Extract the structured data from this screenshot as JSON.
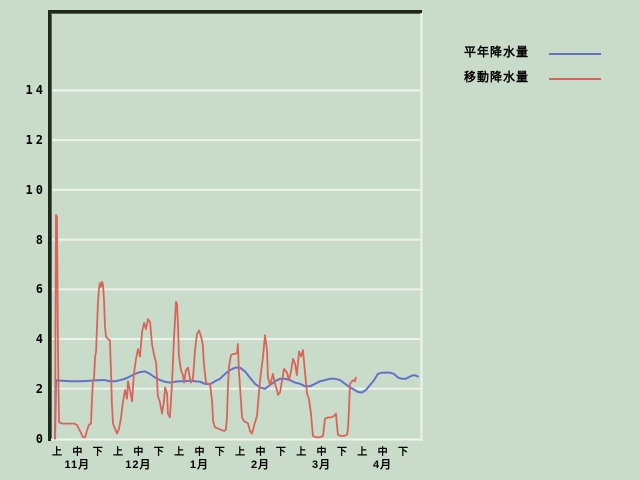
{
  "legend": {
    "items": [
      {
        "label": "平年降水量",
        "color": "#6471cb"
      },
      {
        "label": "移動降水量",
        "color": "#d8655a"
      }
    ]
  },
  "chart_data": {
    "type": "line",
    "title": "",
    "xlabel": "",
    "ylabel": "",
    "grid": true,
    "legend_position": "top-right",
    "y_axis": {
      "tick_values": [
        0,
        2,
        4,
        6,
        8,
        10,
        12,
        14
      ],
      "tick_labels": [
        "0",
        "2",
        "4",
        "6",
        "8",
        "10",
        "12",
        "14"
      ],
      "gridlines": [
        2,
        4,
        6,
        8,
        10,
        12,
        14
      ],
      "range": [
        0,
        17.1
      ]
    },
    "x_axis": {
      "months": [
        "11月",
        "12月",
        "1月",
        "2月",
        "3月",
        "4月"
      ],
      "period_labels": [
        "上",
        "中",
        "下"
      ],
      "unit_description": "x in ten-day periods, 0 = 11月上"
    },
    "series": [
      {
        "name": "平年降水量",
        "color": "#6471cb",
        "points": [
          [
            -0.1,
            0.0
          ],
          [
            -0.05,
            2.35
          ],
          [
            0.15,
            2.33
          ],
          [
            0.64,
            2.3
          ],
          [
            1.13,
            2.3
          ],
          [
            1.62,
            2.32
          ],
          [
            2.11,
            2.35
          ],
          [
            2.36,
            2.35
          ],
          [
            2.6,
            2.3
          ],
          [
            2.85,
            2.3
          ],
          [
            3.1,
            2.35
          ],
          [
            3.34,
            2.4
          ],
          [
            3.59,
            2.5
          ],
          [
            3.83,
            2.6
          ],
          [
            4.08,
            2.67
          ],
          [
            4.32,
            2.7
          ],
          [
            4.57,
            2.6
          ],
          [
            4.82,
            2.45
          ],
          [
            5.06,
            2.35
          ],
          [
            5.31,
            2.28
          ],
          [
            5.55,
            2.25
          ],
          [
            5.8,
            2.28
          ],
          [
            6.04,
            2.3
          ],
          [
            6.29,
            2.3
          ],
          [
            6.54,
            2.32
          ],
          [
            6.78,
            2.3
          ],
          [
            7.03,
            2.28
          ],
          [
            7.27,
            2.2
          ],
          [
            7.52,
            2.18
          ],
          [
            7.76,
            2.3
          ],
          [
            8.01,
            2.4
          ],
          [
            8.26,
            2.6
          ],
          [
            8.5,
            2.75
          ],
          [
            8.75,
            2.85
          ],
          [
            8.99,
            2.85
          ],
          [
            9.24,
            2.7
          ],
          [
            9.48,
            2.45
          ],
          [
            9.73,
            2.2
          ],
          [
            9.98,
            2.05
          ],
          [
            10.22,
            2.0
          ],
          [
            10.47,
            2.15
          ],
          [
            10.71,
            2.3
          ],
          [
            10.96,
            2.4
          ],
          [
            11.21,
            2.4
          ],
          [
            11.45,
            2.35
          ],
          [
            11.7,
            2.25
          ],
          [
            11.94,
            2.2
          ],
          [
            12.19,
            2.1
          ],
          [
            12.43,
            2.1
          ],
          [
            12.68,
            2.2
          ],
          [
            12.92,
            2.3
          ],
          [
            13.17,
            2.35
          ],
          [
            13.41,
            2.4
          ],
          [
            13.66,
            2.4
          ],
          [
            13.91,
            2.35
          ],
          [
            14.15,
            2.2
          ],
          [
            14.4,
            2.05
          ],
          [
            14.64,
            1.95
          ],
          [
            14.79,
            1.87
          ],
          [
            14.99,
            1.85
          ],
          [
            15.18,
            1.95
          ],
          [
            15.38,
            2.15
          ],
          [
            15.58,
            2.35
          ],
          [
            15.77,
            2.6
          ],
          [
            15.97,
            2.65
          ],
          [
            16.17,
            2.65
          ],
          [
            16.36,
            2.65
          ],
          [
            16.56,
            2.6
          ],
          [
            16.76,
            2.45
          ],
          [
            16.95,
            2.4
          ],
          [
            17.15,
            2.4
          ],
          [
            17.35,
            2.5
          ],
          [
            17.54,
            2.55
          ],
          [
            17.74,
            2.5
          ]
        ]
      },
      {
        "name": "移動降水量",
        "color": "#d8655a",
        "points": [
          [
            -0.1,
            0.0
          ],
          [
            -0.05,
            9.0
          ],
          [
            0.0,
            8.9
          ],
          [
            0.05,
            3.5
          ],
          [
            0.1,
            0.65
          ],
          [
            0.25,
            0.6
          ],
          [
            0.44,
            0.6
          ],
          [
            0.64,
            0.6
          ],
          [
            0.84,
            0.6
          ],
          [
            0.98,
            0.55
          ],
          [
            1.13,
            0.3
          ],
          [
            1.28,
            0.05
          ],
          [
            1.38,
            0.05
          ],
          [
            1.47,
            0.3
          ],
          [
            1.57,
            0.55
          ],
          [
            1.67,
            0.6
          ],
          [
            1.72,
            1.6
          ],
          [
            1.77,
            2.35
          ],
          [
            1.82,
            2.4
          ],
          [
            1.87,
            3.3
          ],
          [
            1.92,
            3.5
          ],
          [
            1.97,
            4.6
          ],
          [
            2.01,
            5.4
          ],
          [
            2.06,
            6.0
          ],
          [
            2.11,
            6.25
          ],
          [
            2.16,
            6.1
          ],
          [
            2.21,
            6.3
          ],
          [
            2.26,
            6.2
          ],
          [
            2.31,
            5.6
          ],
          [
            2.36,
            4.5
          ],
          [
            2.41,
            4.1
          ],
          [
            2.51,
            4.0
          ],
          [
            2.6,
            3.95
          ],
          [
            2.65,
            2.8
          ],
          [
            2.7,
            1.4
          ],
          [
            2.75,
            0.6
          ],
          [
            2.85,
            0.4
          ],
          [
            2.95,
            0.2
          ],
          [
            3.05,
            0.4
          ],
          [
            3.14,
            0.8
          ],
          [
            3.24,
            1.45
          ],
          [
            3.34,
            1.95
          ],
          [
            3.44,
            1.6
          ],
          [
            3.49,
            2.3
          ],
          [
            3.59,
            1.9
          ],
          [
            3.69,
            1.5
          ],
          [
            3.78,
            2.6
          ],
          [
            3.88,
            3.2
          ],
          [
            3.98,
            3.6
          ],
          [
            4.08,
            3.3
          ],
          [
            4.18,
            4.3
          ],
          [
            4.28,
            4.65
          ],
          [
            4.37,
            4.4
          ],
          [
            4.47,
            4.8
          ],
          [
            4.57,
            4.7
          ],
          [
            4.67,
            3.8
          ],
          [
            4.77,
            3.35
          ],
          [
            4.87,
            3.05
          ],
          [
            4.96,
            1.7
          ],
          [
            5.06,
            1.45
          ],
          [
            5.16,
            1.0
          ],
          [
            5.26,
            1.5
          ],
          [
            5.31,
            2.05
          ],
          [
            5.41,
            1.8
          ],
          [
            5.45,
            1.0
          ],
          [
            5.55,
            0.85
          ],
          [
            5.65,
            2.2
          ],
          [
            5.75,
            4.05
          ],
          [
            5.85,
            5.5
          ],
          [
            5.9,
            5.4
          ],
          [
            5.95,
            4.4
          ],
          [
            5.99,
            3.35
          ],
          [
            6.09,
            2.75
          ],
          [
            6.19,
            2.55
          ],
          [
            6.24,
            2.25
          ],
          [
            6.34,
            2.75
          ],
          [
            6.44,
            2.85
          ],
          [
            6.49,
            2.6
          ],
          [
            6.58,
            2.25
          ],
          [
            6.68,
            2.4
          ],
          [
            6.73,
            2.95
          ],
          [
            6.78,
            3.55
          ],
          [
            6.88,
            4.2
          ],
          [
            6.98,
            4.35
          ],
          [
            7.08,
            4.1
          ],
          [
            7.17,
            3.75
          ],
          [
            7.22,
            3.0
          ],
          [
            7.32,
            2.25
          ],
          [
            7.42,
            2.2
          ],
          [
            7.52,
            2.2
          ],
          [
            7.62,
            1.5
          ],
          [
            7.67,
            0.7
          ],
          [
            7.76,
            0.45
          ],
          [
            7.91,
            0.4
          ],
          [
            8.06,
            0.35
          ],
          [
            8.21,
            0.3
          ],
          [
            8.3,
            0.35
          ],
          [
            8.35,
            0.8
          ],
          [
            8.4,
            2.0
          ],
          [
            8.45,
            2.9
          ],
          [
            8.55,
            3.35
          ],
          [
            8.65,
            3.4
          ],
          [
            8.75,
            3.4
          ],
          [
            8.85,
            3.45
          ],
          [
            8.89,
            3.8
          ],
          [
            8.94,
            2.7
          ],
          [
            9.04,
            1.5
          ],
          [
            9.09,
            0.85
          ],
          [
            9.19,
            0.7
          ],
          [
            9.29,
            0.65
          ],
          [
            9.39,
            0.6
          ],
          [
            9.48,
            0.3
          ],
          [
            9.58,
            0.2
          ],
          [
            9.73,
            0.65
          ],
          [
            9.83,
            0.9
          ],
          [
            9.88,
            1.45
          ],
          [
            9.98,
            2.35
          ],
          [
            10.07,
            2.95
          ],
          [
            10.12,
            3.25
          ],
          [
            10.22,
            4.15
          ],
          [
            10.32,
            3.55
          ],
          [
            10.37,
            2.45
          ],
          [
            10.47,
            2.15
          ],
          [
            10.61,
            2.6
          ],
          [
            10.71,
            2.2
          ],
          [
            10.81,
            1.95
          ],
          [
            10.86,
            1.75
          ],
          [
            10.96,
            1.85
          ],
          [
            11.06,
            2.35
          ],
          [
            11.16,
            2.8
          ],
          [
            11.3,
            2.65
          ],
          [
            11.4,
            2.35
          ],
          [
            11.5,
            2.7
          ],
          [
            11.6,
            3.2
          ],
          [
            11.7,
            3.0
          ],
          [
            11.79,
            2.55
          ],
          [
            11.89,
            3.5
          ],
          [
            11.99,
            3.3
          ],
          [
            12.09,
            3.55
          ],
          [
            12.19,
            2.6
          ],
          [
            12.29,
            1.8
          ],
          [
            12.38,
            1.6
          ],
          [
            12.48,
            1.0
          ],
          [
            12.53,
            0.5
          ],
          [
            12.58,
            0.1
          ],
          [
            12.73,
            0.05
          ],
          [
            12.92,
            0.05
          ],
          [
            13.07,
            0.1
          ],
          [
            13.17,
            0.8
          ],
          [
            13.32,
            0.85
          ],
          [
            13.46,
            0.85
          ],
          [
            13.61,
            0.9
          ],
          [
            13.71,
            1.0
          ],
          [
            13.76,
            0.5
          ],
          [
            13.81,
            0.15
          ],
          [
            13.96,
            0.1
          ],
          [
            14.1,
            0.1
          ],
          [
            14.25,
            0.15
          ],
          [
            14.3,
            0.4
          ],
          [
            14.35,
            1.2
          ],
          [
            14.4,
            2.2
          ],
          [
            14.5,
            2.3
          ],
          [
            14.55,
            2.35
          ],
          [
            14.65,
            2.3
          ],
          [
            14.69,
            2.45
          ]
        ]
      }
    ]
  }
}
